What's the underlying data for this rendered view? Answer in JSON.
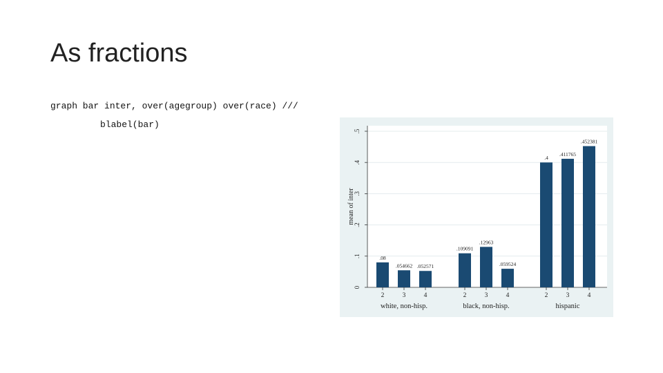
{
  "slide": {
    "title": "As fractions",
    "code_line1": "graph bar inter, over(agegroup) over(race) ///",
    "code_line2": "blabel(bar)"
  },
  "chart_data": {
    "type": "bar",
    "ylabel": "mean of inter",
    "ylim": [
      0,
      0.5
    ],
    "yticks": [
      0,
      0.1,
      0.2,
      0.3,
      0.4,
      0.5
    ],
    "ytick_labels": [
      "0",
      ".1",
      ".2",
      ".3",
      ".4",
      ".5"
    ],
    "grid": true,
    "groups": [
      {
        "name": "white, non-hisp.",
        "categories": [
          "2",
          "3",
          "4"
        ],
        "values": [
          0.08,
          0.054662,
          0.052571
        ],
        "labels": [
          ".08",
          ".054662",
          ".052571"
        ]
      },
      {
        "name": "black, non-hisp.",
        "categories": [
          "2",
          "3",
          "4"
        ],
        "values": [
          0.109091,
          0.12963,
          0.059524
        ],
        "labels": [
          ".109091",
          ".12963",
          ".059524"
        ]
      },
      {
        "name": "hispanic",
        "categories": [
          "2",
          "3",
          "4"
        ],
        "values": [
          0.4,
          0.411765,
          0.452381
        ],
        "labels": [
          ".4",
          ".411765",
          ".452381"
        ]
      }
    ],
    "bar_color": "#1a4a72",
    "panel_bg": "#eaf2f3",
    "plot_bg": "#ffffff"
  }
}
